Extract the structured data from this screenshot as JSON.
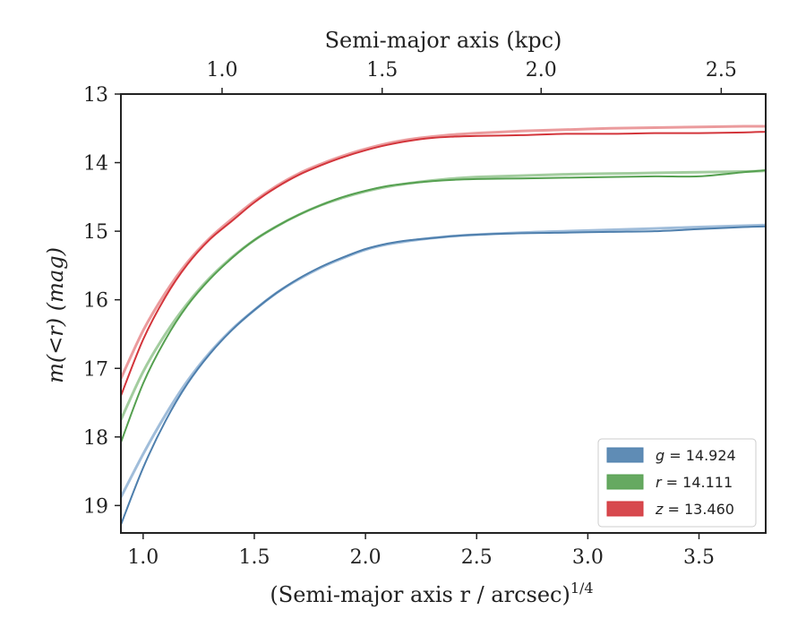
{
  "chart_data": {
    "type": "line",
    "ylabel": "m(<r) (mag)",
    "xlabel": "(Semi-major axis r / arcsec)",
    "xlabel_exponent": "1/4",
    "top_xlabel": "Semi-major axis (kpc)",
    "xlim": [
      0.9,
      3.8
    ],
    "ylim": [
      19.4,
      13.0
    ],
    "y_inverted": true,
    "xticks": [
      1.0,
      1.5,
      2.0,
      2.5,
      3.0,
      3.5
    ],
    "xtick_labels": [
      "1.0",
      "1.5",
      "2.0",
      "2.5",
      "3.0",
      "3.5"
    ],
    "yticks": [
      13,
      14,
      15,
      16,
      17,
      18,
      19
    ],
    "ytick_labels": [
      "13",
      "14",
      "15",
      "16",
      "17",
      "18",
      "19"
    ],
    "top_xticks": [
      1.0,
      1.5,
      2.0,
      2.5
    ],
    "top_xtick_labels": [
      "1.0",
      "1.5",
      "2.0",
      "2.5"
    ],
    "top_xtick_positions": [
      1.355,
      2.075,
      2.79,
      3.6
    ],
    "grid": false,
    "legend_position": "lower-right",
    "legend": [
      {
        "label": "g = 14.924",
        "var": "g",
        "value": "14.924",
        "color": "#4e7fad"
      },
      {
        "label": "r = 14.111",
        "var": "r",
        "value": "14.111",
        "color": "#55a050"
      },
      {
        "label": "z = 13.460",
        "var": "z",
        "value": "13.460",
        "color": "#d3353b"
      }
    ],
    "series": [
      {
        "name": "g",
        "color": "#4e7fad",
        "light_color": "#8fb1d4",
        "x": [
          0.9,
          1.0,
          1.1,
          1.2,
          1.3,
          1.4,
          1.5,
          1.6,
          1.7,
          1.8,
          1.9,
          2.0,
          2.1,
          2.2,
          2.3,
          2.4,
          2.5,
          2.7,
          2.9,
          3.1,
          3.3,
          3.5,
          3.7,
          3.8
        ],
        "values": [
          19.28,
          18.45,
          17.77,
          17.22,
          16.79,
          16.44,
          16.15,
          15.9,
          15.69,
          15.52,
          15.38,
          15.26,
          15.18,
          15.13,
          15.1,
          15.07,
          15.05,
          15.03,
          15.02,
          15.01,
          15.0,
          14.97,
          14.94,
          14.93
        ],
        "values_alt": [
          18.88,
          18.25,
          17.68,
          17.18,
          16.77,
          16.43,
          16.15,
          15.9,
          15.7,
          15.53,
          15.39,
          15.27,
          15.19,
          15.14,
          15.1,
          15.07,
          15.05,
          15.02,
          15.0,
          14.98,
          14.96,
          14.94,
          14.92,
          14.91
        ]
      },
      {
        "name": "r",
        "color": "#55a050",
        "light_color": "#93c48e",
        "x": [
          0.9,
          1.0,
          1.1,
          1.2,
          1.3,
          1.4,
          1.5,
          1.6,
          1.7,
          1.8,
          1.9,
          2.0,
          2.1,
          2.2,
          2.3,
          2.4,
          2.5,
          2.7,
          2.9,
          3.1,
          3.3,
          3.5,
          3.7,
          3.8
        ],
        "values": [
          18.08,
          17.22,
          16.58,
          16.08,
          15.7,
          15.39,
          15.13,
          14.93,
          14.76,
          14.62,
          14.5,
          14.41,
          14.34,
          14.3,
          14.27,
          14.25,
          14.24,
          14.23,
          14.22,
          14.21,
          14.2,
          14.2,
          14.14,
          14.11
        ],
        "values_alt": [
          17.75,
          17.05,
          16.5,
          16.05,
          15.68,
          15.38,
          15.13,
          14.93,
          14.76,
          14.62,
          14.51,
          14.42,
          14.35,
          14.3,
          14.26,
          14.23,
          14.21,
          14.19,
          14.17,
          14.16,
          14.15,
          14.14,
          14.13,
          14.12
        ]
      },
      {
        "name": "z",
        "color": "#d3353b",
        "light_color": "#e88a8c",
        "x": [
          0.9,
          1.0,
          1.1,
          1.2,
          1.3,
          1.4,
          1.5,
          1.6,
          1.7,
          1.8,
          1.9,
          2.0,
          2.1,
          2.2,
          2.3,
          2.4,
          2.5,
          2.7,
          2.9,
          3.1,
          3.3,
          3.5,
          3.7,
          3.8
        ],
        "values": [
          17.4,
          16.58,
          15.96,
          15.48,
          15.12,
          14.85,
          14.58,
          14.36,
          14.18,
          14.04,
          13.92,
          13.82,
          13.74,
          13.68,
          13.64,
          13.62,
          13.61,
          13.6,
          13.58,
          13.58,
          13.57,
          13.57,
          13.56,
          13.55
        ],
        "values_alt": [
          17.15,
          16.45,
          15.9,
          15.45,
          15.1,
          14.82,
          14.56,
          14.34,
          14.16,
          14.02,
          13.9,
          13.8,
          13.72,
          13.66,
          13.62,
          13.59,
          13.57,
          13.54,
          13.52,
          13.5,
          13.49,
          13.48,
          13.47,
          13.47
        ]
      }
    ]
  }
}
